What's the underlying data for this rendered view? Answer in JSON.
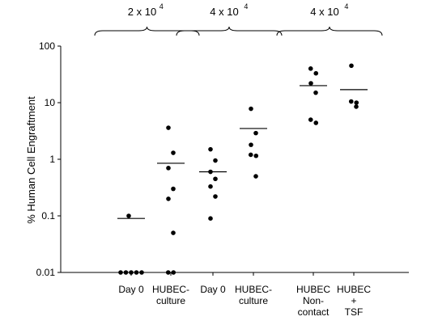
{
  "chart_data": {
    "type": "scatter",
    "ylabel": "% Human Cell Engraftment",
    "yscale": "log",
    "ylim": [
      0.01,
      100
    ],
    "yticks": [
      {
        "value": 100,
        "label": "100"
      },
      {
        "value": 10,
        "label": "10"
      },
      {
        "value": 1,
        "label": "1"
      },
      {
        "value": 0.1,
        "label": "0.1"
      },
      {
        "value": 0.01,
        "label": "0.01"
      }
    ],
    "grid": false,
    "groups": [
      {
        "base": "2 x 10",
        "exp": "4",
        "span": [
          0,
          1
        ]
      },
      {
        "base": "4  x 10",
        "exp": "4",
        "span": [
          2,
          3
        ]
      },
      {
        "base": "4  x 10",
        "exp": "4",
        "span": [
          4,
          5
        ]
      }
    ],
    "categories": [
      {
        "lines": [
          "Day 0"
        ],
        "mean": 0.09,
        "points": [
          0.1,
          0.01,
          0.01,
          0.01,
          0.01,
          0.01
        ]
      },
      {
        "lines": [
          "HUBEC-",
          "culture"
        ],
        "mean": 0.85,
        "points": [
          3.6,
          1.3,
          0.7,
          0.3,
          0.2,
          0.05,
          0.01,
          0.01
        ]
      },
      {
        "lines": [
          "Day 0"
        ],
        "mean": 0.6,
        "points": [
          1.5,
          0.95,
          0.6,
          0.45,
          0.33,
          0.22,
          0.09
        ]
      },
      {
        "lines": [
          "HUBEC-",
          "culture"
        ],
        "mean": 3.5,
        "points": [
          7.8,
          2.9,
          1.8,
          1.2,
          1.15,
          0.5
        ]
      },
      {
        "lines": [
          "HUBEC",
          "Non-",
          "contact"
        ],
        "mean": 20,
        "points": [
          40,
          33,
          22,
          15,
          5.0,
          4.4
        ]
      },
      {
        "lines": [
          "HUBEC",
          "+",
          "TSF"
        ],
        "mean": 17,
        "points": [
          45,
          10.5,
          10,
          8.5
        ]
      }
    ]
  }
}
